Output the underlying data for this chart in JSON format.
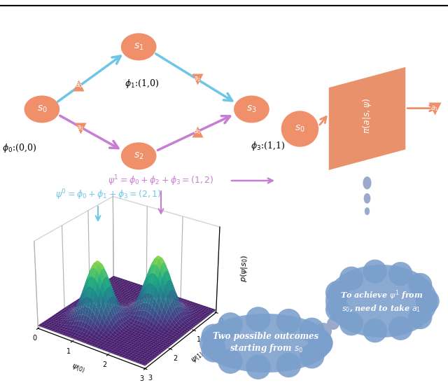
{
  "bg_color": "#ffffff",
  "node_color": "#F0906A",
  "blue_arrow": "#6EC6E6",
  "purple_arrow": "#C87DD4",
  "thought_color": "#7B9FCC",
  "policy_color": "#E8916A",
  "psi0_text": "$\\psi^0 = \\phi_0 + \\phi_1 + \\phi_3 = (2,1)$",
  "psi1_text": "$\\psi^1 = \\phi_0 + \\phi_2 + \\phi_3 = (1,2)$",
  "thought1": "Two possible outcomes\nstarting from $s_0$",
  "thought2": "To achieve $\\psi^1$ from\n$s_0$, need to take $a_1$"
}
